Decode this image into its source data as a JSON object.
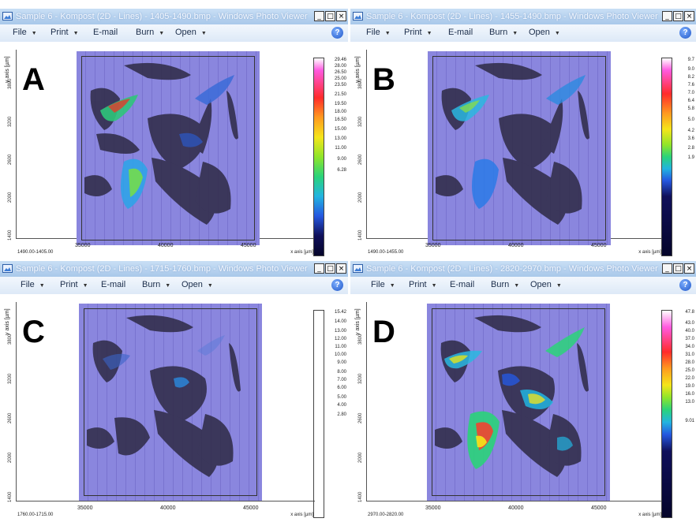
{
  "menu": {
    "file": "File",
    "print": "Print",
    "email": "E-mail",
    "burn": "Burn",
    "open": "Open"
  },
  "icons": {
    "app": "photo-viewer-icon",
    "help": "help-icon",
    "minimize": "minimize-icon",
    "maximize": "maximize-icon",
    "close": "close-icon"
  },
  "window_buttons": {
    "minimize": "_",
    "maximize": "□",
    "close": "×"
  },
  "help_glyph": "?",
  "axes": {
    "ylabel": "y axis [µm]",
    "xlabel": "x axis [µm]",
    "xticks": [
      "35000",
      "40000",
      "45000"
    ],
    "yticks": [
      "3800",
      "3200",
      "2600",
      "2000",
      "1400"
    ]
  },
  "panels": [
    {
      "letter": "A",
      "title": "Sample 6 - Kompost (2D - Lines) - 1405-1490.bmp - Windows Photo Viewer",
      "range": "1490.00-1405.00",
      "colorbar": [
        "29.46",
        "28.00",
        "26.50",
        "25.00",
        "23.50",
        "21.50",
        "19.50",
        "18.00",
        "16.50",
        "15.00",
        "13.00",
        "11.00",
        "9.00",
        "6.28"
      ],
      "colors": {
        "accent": "#e4e21c"
      }
    },
    {
      "letter": "B",
      "title": "Sample 6 - Kompost (2D - Lines) - 1455-1490.bmp - Windows Photo Viewer",
      "range": "1490.00-1455.00",
      "colorbar": [
        "9.7",
        "9.0",
        "8.2",
        "7.6",
        "7.0",
        "6.4",
        "5.8",
        "5.0",
        "4.2",
        "3.6",
        "2.8",
        "1.9"
      ],
      "colors": {
        "accent": "#2aa0ff"
      }
    },
    {
      "letter": "C",
      "title": "Sample 6 - Kompost (2D - Lines) - 1715-1760.bmp - Windows Photo Viewer",
      "range": "1760.00-1715.00",
      "colorbar": [
        "15.42",
        "14.00",
        "13.00",
        "12.00",
        "11.00",
        "10.00",
        "9.00",
        "8.00",
        "7.00",
        "6.00",
        "5.00",
        "4.00",
        "2.80"
      ],
      "colors": {
        "accent": "#2a6bd8"
      }
    },
    {
      "letter": "D",
      "title": "Sample 6 - Kompost (2D - Lines) - 2820-2970.bmp - Windows Photo Viewer",
      "range": "2970.00-2820.00",
      "colorbar": [
        "47.8",
        "43.0",
        "40.0",
        "37.0",
        "34.0",
        "31.0",
        "28.0",
        "25.0",
        "22.0",
        "19.0",
        "16.0",
        "13.0",
        "9.01"
      ],
      "colors": {
        "accent": "#ff3b2a"
      }
    }
  ]
}
